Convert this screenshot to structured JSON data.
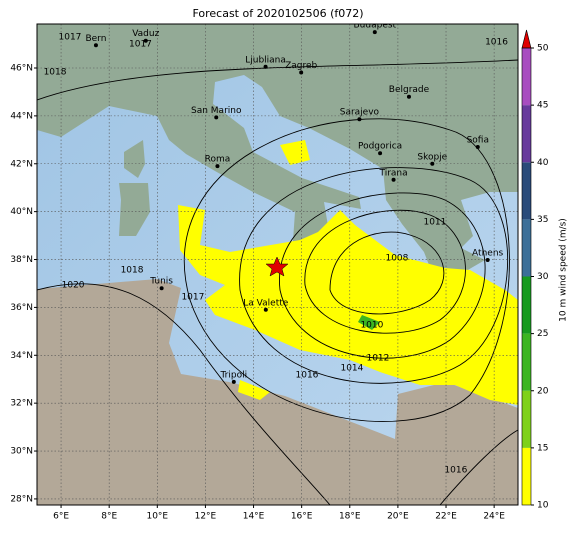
{
  "title": "Forecast of 2020102506 (f072)",
  "map": {
    "lon_ticks": [
      {
        "value": 6,
        "label": "6°E"
      },
      {
        "value": 8,
        "label": "8°E"
      },
      {
        "value": 10,
        "label": "10°E"
      },
      {
        "value": 12,
        "label": "12°E"
      },
      {
        "value": 14,
        "label": "14°E"
      },
      {
        "value": 16,
        "label": "16°E"
      },
      {
        "value": 18,
        "label": "18°E"
      },
      {
        "value": 20,
        "label": "20°E"
      },
      {
        "value": 22,
        "label": "22°E"
      },
      {
        "value": 24,
        "label": "24°E"
      }
    ],
    "lat_ticks": [
      {
        "value": 28,
        "label": "28°N"
      },
      {
        "value": 30,
        "label": "30°N"
      },
      {
        "value": 32,
        "label": "32°N"
      },
      {
        "value": 34,
        "label": "34°N"
      },
      {
        "value": 36,
        "label": "36°N"
      },
      {
        "value": 38,
        "label": "38°N"
      },
      {
        "value": 40,
        "label": "40°N"
      },
      {
        "value": 42,
        "label": "42°N"
      },
      {
        "value": 44,
        "label": "44°N"
      },
      {
        "value": 46,
        "label": "46°N"
      }
    ],
    "cities": [
      {
        "name": "Bern",
        "lon": 7.45,
        "lat": 46.95
      },
      {
        "name": "Vaduz",
        "lon": 9.52,
        "lat": 47.14
      },
      {
        "name": "Budapest",
        "lon": 19.04,
        "lat": 47.5
      },
      {
        "name": "Ljubliana",
        "lon": 14.5,
        "lat": 46.05
      },
      {
        "name": "Zagreb",
        "lon": 15.98,
        "lat": 45.81
      },
      {
        "name": "Belgrade",
        "lon": 20.46,
        "lat": 44.8
      },
      {
        "name": "San Marino",
        "lon": 12.45,
        "lat": 43.94
      },
      {
        "name": "Sarajevo",
        "lon": 18.4,
        "lat": 43.86
      },
      {
        "name": "Roma",
        "lon": 12.5,
        "lat": 41.9
      },
      {
        "name": "Podgorica",
        "lon": 19.26,
        "lat": 42.44
      },
      {
        "name": "Skopje",
        "lon": 21.43,
        "lat": 42.0
      },
      {
        "name": "Sofia",
        "lon": 23.32,
        "lat": 42.7
      },
      {
        "name": "Tirana",
        "lon": 19.82,
        "lat": 41.33
      },
      {
        "name": "Athens",
        "lon": 23.73,
        "lat": 37.98
      },
      {
        "name": "Tunis",
        "lon": 10.18,
        "lat": 36.8
      },
      {
        "name": "La Valette",
        "lon": 14.51,
        "lat": 35.9
      },
      {
        "name": "Tripoli",
        "lon": 13.18,
        "lat": 32.89
      }
    ],
    "isobar_labels": [
      {
        "label": "1016",
        "lon": 24.1,
        "lat": 47.09
      },
      {
        "label": "1017",
        "lon": 6.37,
        "lat": 47.3
      },
      {
        "label": "1017",
        "lon": 9.3,
        "lat": 47.0
      },
      {
        "label": "1018",
        "lon": 5.75,
        "lat": 45.83
      },
      {
        "label": "1011",
        "lon": 21.54,
        "lat": 39.57
      },
      {
        "label": "1008",
        "lon": 19.96,
        "lat": 38.06
      },
      {
        "label": "1010",
        "lon": 18.92,
        "lat": 35.27
      },
      {
        "label": "1012",
        "lon": 19.17,
        "lat": 33.89
      },
      {
        "label": "1014",
        "lon": 18.09,
        "lat": 33.47
      },
      {
        "label": "1016",
        "lon": 16.22,
        "lat": 33.18
      },
      {
        "label": "1018",
        "lon": 8.95,
        "lat": 37.56
      },
      {
        "label": "1017",
        "lon": 11.48,
        "lat": 36.43
      },
      {
        "label": "1020",
        "lon": 6.5,
        "lat": 36.94
      },
      {
        "label": "1016",
        "lon": 22.41,
        "lat": 29.21
      }
    ]
  },
  "colorbar": {
    "label": "10 m wind speed (m/s)",
    "ticks": [
      10,
      15,
      20,
      25,
      30,
      35,
      40,
      45,
      50
    ],
    "colors": [
      "#ffff00",
      "#7fd11a",
      "#3cb521",
      "#179a1f",
      "#3b6f98",
      "#2a4b7a",
      "#673a9c",
      "#a84dc0"
    ],
    "extend_color": "#e00000"
  }
}
